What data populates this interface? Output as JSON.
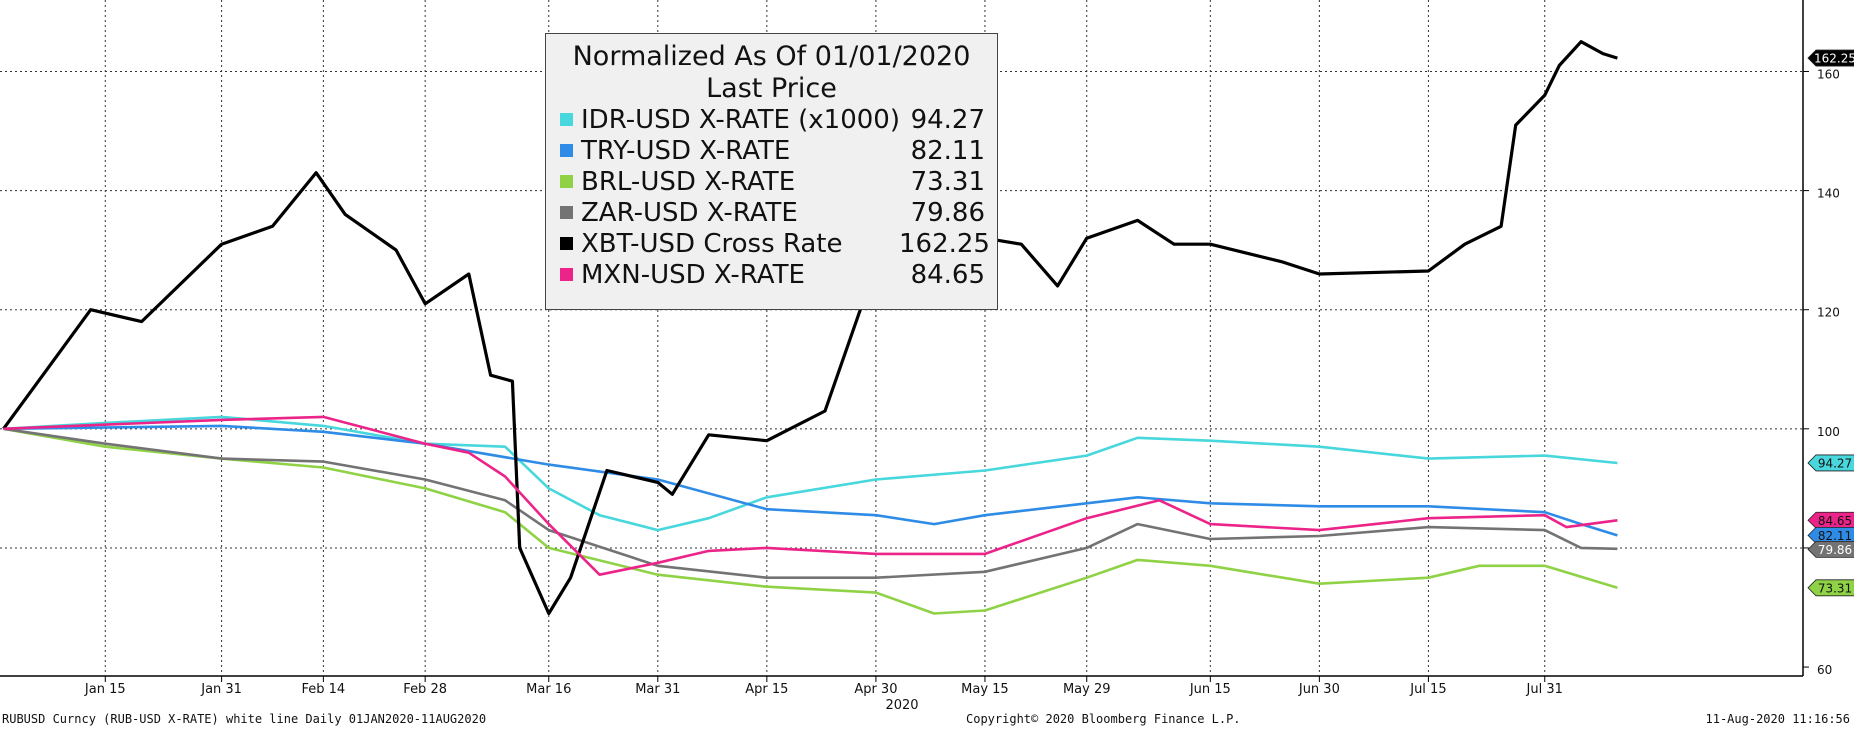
{
  "chart_data": {
    "type": "line",
    "title": "Normalized As Of 01/01/2020",
    "subtitle": "Last Price",
    "year_label": "2020",
    "x_tick_labels": [
      "Jan 15",
      "Jan 31",
      "Feb 14",
      "Feb 28",
      "Mar 16",
      "Mar 31",
      "Apr 15",
      "Apr 30",
      "May 15",
      "May 29",
      "Jun 15",
      "Jun 30",
      "Jul 15",
      "Jul 31"
    ],
    "y_ticks": [
      60,
      80,
      100,
      120,
      140,
      160
    ],
    "y_tick_labels": [
      "60",
      "80",
      "100",
      "120",
      "140",
      "160"
    ],
    "ylim": [
      58.5,
      172
    ],
    "grid": true,
    "legend_position": "top-center",
    "series": [
      {
        "name": "IDR-USD X-RATE (x1000)",
        "last": "94.27",
        "color": "#47d7dc",
        "points": [
          [
            "Jan 01",
            100
          ],
          [
            "Jan 15",
            101
          ],
          [
            "Jan 31",
            102
          ],
          [
            "Feb 14",
            100.5
          ],
          [
            "Feb 28",
            97.5
          ],
          [
            "Mar 10",
            97
          ],
          [
            "Mar 16",
            90
          ],
          [
            "Mar 23",
            85.5
          ],
          [
            "Mar 31",
            83
          ],
          [
            "Apr 07",
            85
          ],
          [
            "Apr 15",
            88.5
          ],
          [
            "Apr 30",
            91.5
          ],
          [
            "May 15",
            93
          ],
          [
            "May 29",
            95.5
          ],
          [
            "Jun 05",
            98.5
          ],
          [
            "Jun 15",
            98
          ],
          [
            "Jun 30",
            97
          ],
          [
            "Jul 15",
            95
          ],
          [
            "Jul 31",
            95.5
          ],
          [
            "Aug 10",
            94.27
          ]
        ]
      },
      {
        "name": "TRY-USD X-RATE",
        "last": "82.11",
        "color": "#2f8ce6",
        "points": [
          [
            "Jan 01",
            100
          ],
          [
            "Jan 31",
            100.5
          ],
          [
            "Feb 14",
            99.5
          ],
          [
            "Feb 28",
            97.5
          ],
          [
            "Mar 16",
            94
          ],
          [
            "Mar 31",
            91.5
          ],
          [
            "Apr 15",
            86.5
          ],
          [
            "Apr 30",
            85.5
          ],
          [
            "May 08",
            84
          ],
          [
            "May 15",
            85.5
          ],
          [
            "May 29",
            87.5
          ],
          [
            "Jun 05",
            88.5
          ],
          [
            "Jun 15",
            87.5
          ],
          [
            "Jun 30",
            87
          ],
          [
            "Jul 15",
            87
          ],
          [
            "Jul 31",
            86
          ],
          [
            "Aug 05",
            84
          ],
          [
            "Aug 10",
            82.11
          ]
        ]
      },
      {
        "name": "BRL-USD X-RATE",
        "last": "73.31",
        "color": "#8fd246",
        "points": [
          [
            "Jan 01",
            100
          ],
          [
            "Jan 15",
            97
          ],
          [
            "Jan 31",
            95
          ],
          [
            "Feb 14",
            93.5
          ],
          [
            "Feb 28",
            90
          ],
          [
            "Mar 10",
            86
          ],
          [
            "Mar 16",
            80
          ],
          [
            "Mar 31",
            75.5
          ],
          [
            "Apr 15",
            73.5
          ],
          [
            "Apr 30",
            72.5
          ],
          [
            "May 08",
            69
          ],
          [
            "May 15",
            69.5
          ],
          [
            "May 29",
            75
          ],
          [
            "Jun 05",
            78
          ],
          [
            "Jun 15",
            77
          ],
          [
            "Jun 30",
            74
          ],
          [
            "Jul 15",
            75
          ],
          [
            "Jul 22",
            77
          ],
          [
            "Jul 31",
            77
          ],
          [
            "Aug 10",
            73.31
          ]
        ]
      },
      {
        "name": "ZAR-USD X-RATE",
        "last": "79.86",
        "color": "#737373",
        "points": [
          [
            "Jan 01",
            100
          ],
          [
            "Jan 15",
            97.5
          ],
          [
            "Jan 31",
            95
          ],
          [
            "Feb 14",
            94.5
          ],
          [
            "Feb 28",
            91.5
          ],
          [
            "Mar 10",
            88
          ],
          [
            "Mar 16",
            83
          ],
          [
            "Mar 31",
            77
          ],
          [
            "Apr 15",
            75
          ],
          [
            "Apr 30",
            75
          ],
          [
            "May 15",
            76
          ],
          [
            "May 29",
            80
          ],
          [
            "Jun 05",
            84
          ],
          [
            "Jun 15",
            81.5
          ],
          [
            "Jun 30",
            82
          ],
          [
            "Jul 15",
            83.5
          ],
          [
            "Jul 31",
            83
          ],
          [
            "Aug 05",
            80
          ],
          [
            "Aug 10",
            79.86
          ]
        ]
      },
      {
        "name": "XBT-USD Cross Rate",
        "last": "162.25",
        "color": "#000000",
        "points": [
          [
            "Jan 01",
            100
          ],
          [
            "Jan 07",
            110
          ],
          [
            "Jan 13",
            120
          ],
          [
            "Jan 20",
            118
          ],
          [
            "Jan 31",
            131
          ],
          [
            "Feb 07",
            134
          ],
          [
            "Feb 13",
            143
          ],
          [
            "Feb 17",
            136
          ],
          [
            "Feb 24",
            130
          ],
          [
            "Feb 28",
            121
          ],
          [
            "Mar 05",
            126
          ],
          [
            "Mar 08",
            109
          ],
          [
            "Mar 11",
            108
          ],
          [
            "Mar 12",
            80
          ],
          [
            "Mar 16",
            69
          ],
          [
            "Mar 19",
            75
          ],
          [
            "Mar 24",
            93
          ],
          [
            "Mar 31",
            91
          ],
          [
            "Apr 02",
            89
          ],
          [
            "Apr 07",
            99
          ],
          [
            "Apr 15",
            98
          ],
          [
            "Apr 23",
            103
          ],
          [
            "Apr 29",
            124
          ],
          [
            "May 05",
            133
          ],
          [
            "May 07",
            138
          ],
          [
            "May 10",
            121
          ],
          [
            "May 15",
            132
          ],
          [
            "May 20",
            131
          ],
          [
            "May 25",
            124
          ],
          [
            "May 29",
            132
          ],
          [
            "Jun 05",
            135
          ],
          [
            "Jun 10",
            131
          ],
          [
            "Jun 15",
            131
          ],
          [
            "Jun 25",
            128
          ],
          [
            "Jun 30",
            126
          ],
          [
            "Jul 15",
            126.5
          ],
          [
            "Jul 20",
            131
          ],
          [
            "Jul 25",
            134
          ],
          [
            "Jul 27",
            151
          ],
          [
            "Jul 31",
            156
          ],
          [
            "Aug 02",
            161
          ],
          [
            "Aug 05",
            165
          ],
          [
            "Aug 08",
            163
          ],
          [
            "Aug 10",
            162.25
          ]
        ]
      },
      {
        "name": "MXN-USD X-RATE",
        "last": "84.65",
        "color": "#ec2489",
        "points": [
          [
            "Jan 01",
            100
          ],
          [
            "Jan 31",
            101.5
          ],
          [
            "Feb 14",
            102
          ],
          [
            "Feb 28",
            97.5
          ],
          [
            "Mar 05",
            96
          ],
          [
            "Mar 10",
            92
          ],
          [
            "Mar 16",
            84
          ],
          [
            "Mar 23",
            75.5
          ],
          [
            "Mar 31",
            77.5
          ],
          [
            "Apr 07",
            79.5
          ],
          [
            "Apr 15",
            80
          ],
          [
            "Apr 30",
            79
          ],
          [
            "May 15",
            79
          ],
          [
            "May 29",
            85
          ],
          [
            "Jun 08",
            88
          ],
          [
            "Jun 15",
            84
          ],
          [
            "Jun 30",
            83
          ],
          [
            "Jul 15",
            85
          ],
          [
            "Jul 31",
            85.5
          ],
          [
            "Aug 03",
            83.5
          ],
          [
            "Aug 10",
            84.65
          ]
        ]
      }
    ],
    "badge_order": [
      "IDR-USD X-RATE (x1000)",
      "MXN-USD X-RATE",
      "TRY-USD X-RATE",
      "ZAR-USD X-RATE",
      "BRL-USD X-RATE",
      "XBT-USD Cross Rate"
    ]
  },
  "footer": {
    "left": "RUBUSD Curncy (RUB-USD X-RATE) white line  Daily 01JAN2020-11AUG2020",
    "center": "Copyright© 2020 Bloomberg Finance L.P.",
    "right": "11-Aug-2020 11:16:56"
  }
}
